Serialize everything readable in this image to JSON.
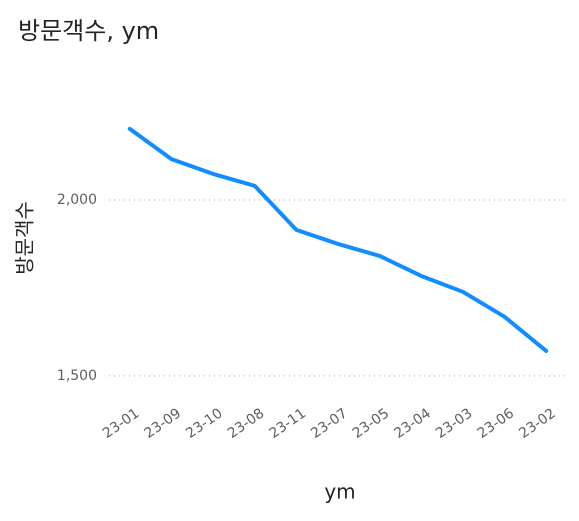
{
  "chart_data": {
    "type": "line",
    "title": "방문객수, ym",
    "x_label": "ym",
    "y_label": "방문객수",
    "categories": [
      "23-01",
      "23-09",
      "23-10",
      "23-08",
      "23-11",
      "23-07",
      "23-05",
      "23-04",
      "23-03",
      "23-06",
      "23-02"
    ],
    "series": [
      {
        "name": "방문객수",
        "color": "#118dff",
        "values": [
          2202,
          2116,
          2074,
          2040,
          1915,
          1875,
          1841,
          1784,
          1739,
          1668,
          1571
        ]
      }
    ],
    "ylim": [
      1460,
      2284
    ],
    "yticks": [
      {
        "value": 1500,
        "label": "1,500"
      },
      {
        "value": 2000,
        "label": "2,000"
      }
    ],
    "grid": true
  }
}
